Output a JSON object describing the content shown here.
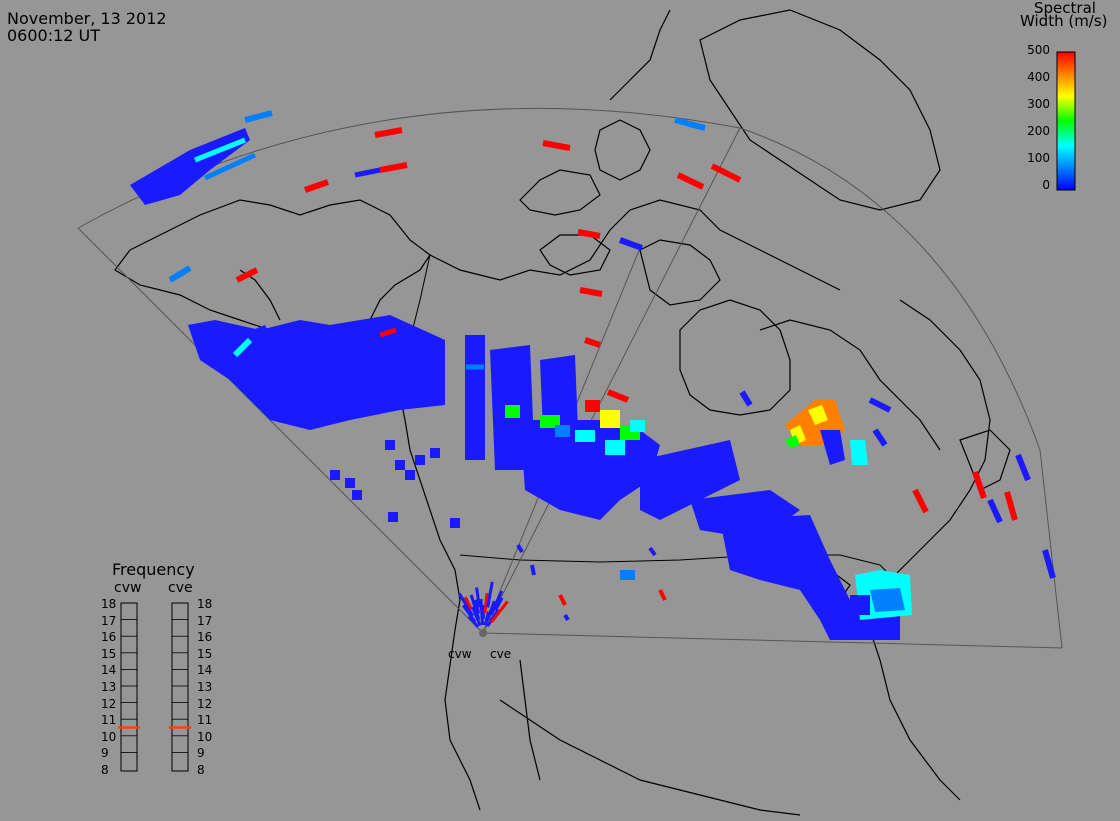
{
  "header": {
    "date": "November, 13 2012",
    "time": "0600:12 UT"
  },
  "colorbar": {
    "title_line1": "Spectral",
    "title_line2": "Width (m/s)",
    "ticks": [
      "500",
      "400",
      "300",
      "200",
      "100",
      "0"
    ],
    "min": 0,
    "max": 500,
    "colors": [
      "#0000ff",
      "#0080ff",
      "#00ffff",
      "#00ff00",
      "#ffff00",
      "#ff8000",
      "#ff0000"
    ]
  },
  "frequency_panel": {
    "title": "Frequency",
    "stations": [
      {
        "name": "cvw",
        "freq_mhz": 10.5
      },
      {
        "name": "cve",
        "freq_mhz": 10.5
      }
    ],
    "scale": [
      "18",
      "17",
      "16",
      "15",
      "14",
      "13",
      "12",
      "11",
      "10",
      "9",
      "8"
    ],
    "marker_color": "#ff4000"
  },
  "radar_sites": [
    {
      "name": "cvw"
    },
    {
      "name": "cve"
    }
  ]
}
